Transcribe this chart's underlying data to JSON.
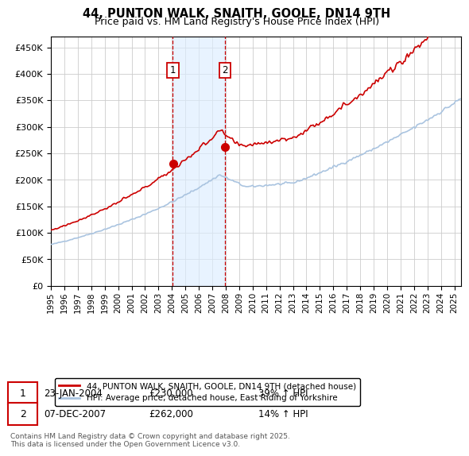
{
  "title": "44, PUNTON WALK, SNAITH, GOOLE, DN14 9TH",
  "subtitle": "Price paid vs. HM Land Registry's House Price Index (HPI)",
  "background_color": "#ffffff",
  "plot_bg_color": "#ffffff",
  "grid_color": "#cccccc",
  "hpi_line_color": "#aac4e0",
  "price_line_color": "#cc0000",
  "marker_color": "#cc0000",
  "shade_color": "#ddeeff",
  "dashed_line_color": "#cc0000",
  "legend_label_price": "44, PUNTON WALK, SNAITH, GOOLE, DN14 9TH (detached house)",
  "legend_label_hpi": "HPI: Average price, detached house, East Riding of Yorkshire",
  "purchase1_date": 2004.07,
  "purchase1_price": 230000,
  "purchase1_label": "1",
  "purchase1_text": "23-JAN-2004",
  "purchase1_pct": "39% ↑ HPI",
  "purchase2_date": 2007.93,
  "purchase2_price": 262000,
  "purchase2_label": "2",
  "purchase2_text": "07-DEC-2007",
  "purchase2_pct": "14% ↑ HPI",
  "footer": "Contains HM Land Registry data © Crown copyright and database right 2025.\nThis data is licensed under the Open Government Licence v3.0.",
  "ylim": [
    0,
    470000
  ],
  "yticks": [
    0,
    50000,
    100000,
    150000,
    200000,
    250000,
    300000,
    350000,
    400000,
    450000
  ],
  "xlim_start": 1995.0,
  "xlim_end": 2025.5
}
